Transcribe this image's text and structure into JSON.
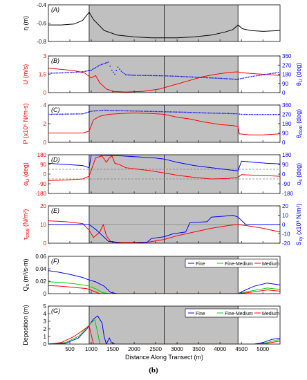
{
  "caption": "(b)",
  "colors": {
    "red": "#ff0000",
    "blue": "#0000ff",
    "green": "#00cc00",
    "black": "#000000",
    "shade": "#c0c0c0",
    "dash": "#808080"
  },
  "chart_data": [
    {
      "panel": "(A)",
      "type": "line",
      "ylabel": "η (m)",
      "ylim": [
        -0.8,
        -0.4
      ],
      "yticks": [
        -0.8,
        -0.6,
        -0.4
      ],
      "xlim": [
        0,
        5400
      ],
      "shaded": [
        950,
        4420
      ],
      "vlines": [
        2700
      ],
      "series": [
        {
          "color": "#000000",
          "x": [
            0,
            300,
            600,
            800,
            950,
            1050,
            1300,
            1600,
            2000,
            2400,
            2700,
            3000,
            3400,
            3800,
            4100,
            4300,
            4420,
            4520,
            4700,
            5000,
            5400
          ],
          "y": [
            -0.62,
            -0.62,
            -0.61,
            -0.57,
            -0.48,
            -0.56,
            -0.68,
            -0.73,
            -0.75,
            -0.76,
            -0.76,
            -0.76,
            -0.75,
            -0.73,
            -0.7,
            -0.67,
            -0.62,
            -0.66,
            -0.68,
            -0.69,
            -0.68
          ]
        }
      ]
    },
    {
      "panel": "(B)",
      "type": "line",
      "ylabel": "U (m/s)",
      "ylim": [
        0,
        3
      ],
      "yticks": [
        0,
        1.5,
        3
      ],
      "y2label": "θU (deg)",
      "y2lim": [
        0,
        360
      ],
      "y2ticks": [
        0,
        90,
        180,
        270,
        360
      ],
      "xlim": [
        0,
        5400
      ],
      "shaded": [
        950,
        4420
      ],
      "vlines": [
        2700
      ],
      "series": [
        {
          "color": "#ff0000",
          "axis": "left",
          "x": [
            0,
            300,
            600,
            850,
            1000,
            1100,
            1200,
            1350,
            1500,
            1800,
            2200,
            2600,
            2700,
            3000,
            3300,
            3600,
            3900,
            4200,
            4400,
            4600,
            5000,
            5400
          ],
          "y": [
            2.0,
            1.9,
            1.8,
            1.6,
            1.2,
            1.4,
            0.8,
            0.3,
            0.1,
            0.05,
            0.1,
            0.3,
            0.4,
            0.7,
            1.0,
            1.3,
            1.5,
            1.65,
            1.7,
            1.6,
            1.5,
            1.4
          ]
        },
        {
          "color": "#0000ff",
          "axis": "right",
          "dotted": true,
          "x": [
            0,
            400,
            800,
            1000,
            1200,
            1400,
            1480,
            1550,
            1620,
            1700,
            1800,
            2000,
            2300,
            2700,
            3000,
            3500,
            4000,
            4400,
            4700,
            5000,
            5400
          ],
          "y": [
            190,
            195,
            205,
            220,
            270,
            300,
            220,
            180,
            250,
            210,
            175,
            170,
            168,
            165,
            160,
            150,
            140,
            130,
            155,
            175,
            200
          ]
        }
      ]
    },
    {
      "panel": "(C)",
      "type": "line",
      "ylabel": "P (x10⁵ N/m-s)",
      "ylim": [
        0,
        4
      ],
      "yticks": [
        0,
        2,
        4
      ],
      "y2label": "θdom (deg)",
      "y2lim": [
        0,
        360
      ],
      "y2ticks": [
        0,
        90,
        180,
        270,
        360
      ],
      "xlim": [
        0,
        5400
      ],
      "shaded": [
        950,
        4420
      ],
      "vlines": [
        2700
      ],
      "series": [
        {
          "color": "#ff0000",
          "axis": "left",
          "x": [
            0,
            400,
            800,
            950,
            1050,
            1200,
            1400,
            1700,
            2000,
            2400,
            2700,
            3000,
            3300,
            3600,
            4000,
            4300,
            4420,
            4450,
            4700,
            5000,
            5400
          ],
          "y": [
            1.0,
            1.0,
            1.0,
            1.2,
            2.4,
            2.8,
            3.0,
            3.1,
            3.15,
            3.1,
            3.0,
            2.7,
            2.5,
            2.2,
            1.9,
            1.8,
            1.7,
            0.9,
            0.8,
            0.8,
            0.9
          ]
        },
        {
          "color": "#0000ff",
          "axis": "right",
          "dotted": true,
          "x": [
            0,
            400,
            800,
            1000,
            1300,
            1700,
            2200,
            2700,
            3200,
            3700,
            4200,
            4420,
            4500,
            4800,
            5100,
            5400
          ],
          "y": [
            270,
            272,
            275,
            300,
            310,
            305,
            300,
            295,
            290,
            283,
            278,
            275,
            270,
            268,
            268,
            268
          ]
        }
      ]
    },
    {
      "panel": "(D)",
      "type": "line",
      "ylabel": "αU (deg)",
      "ylim": [
        -180,
        180
      ],
      "yticks": [
        -180,
        -90,
        0,
        90,
        180
      ],
      "y2label": "αs (deg)",
      "y2lim": [
        -180,
        180
      ],
      "y2ticks": [
        -180,
        -90,
        0,
        90,
        180
      ],
      "xlim": [
        0,
        5400
      ],
      "shaded": [
        950,
        4420
      ],
      "vlines": [
        2700
      ],
      "hlines_dashed": [
        45,
        -45
      ],
      "series": [
        {
          "color": "#ff0000",
          "axis": "left",
          "x": [
            0,
            400,
            800,
            950,
            1100,
            1250,
            1350,
            1420,
            1480,
            1550,
            1650,
            1800,
            2000,
            2400,
            2700,
            3000,
            3400,
            3800,
            4200,
            4420,
            4500,
            4800,
            5100,
            5400
          ],
          "y": [
            -60,
            -55,
            -45,
            -20,
            150,
            170,
            110,
            150,
            170,
            100,
            90,
            60,
            50,
            30,
            10,
            -10,
            -30,
            -45,
            -40,
            -30,
            -5,
            -10,
            -15,
            -20
          ]
        },
        {
          "color": "#0000ff",
          "axis": "right",
          "x": [
            0,
            400,
            800,
            950,
            1000,
            1300,
            1700,
            2100,
            2500,
            2700,
            3000,
            3400,
            3800,
            4200,
            4420,
            4500,
            4800,
            5100,
            5400
          ],
          "y": [
            100,
            90,
            80,
            60,
            180,
            175,
            170,
            160,
            150,
            140,
            110,
            80,
            60,
            40,
            30,
            120,
            110,
            100,
            95
          ]
        }
      ]
    },
    {
      "panel": "(E)",
      "type": "line",
      "ylabel": "τtotal (N/m²)",
      "ylim": [
        0,
        20
      ],
      "yticks": [
        0,
        10,
        20
      ],
      "y2label": "Sxy (x10³ N/m²)",
      "y2lim": [
        -20,
        20
      ],
      "y2ticks": [
        -20,
        -10,
        0,
        10,
        20
      ],
      "xlim": [
        0,
        5400
      ],
      "shaded": [
        950,
        4420
      ],
      "vlines": [
        2700
      ],
      "hlines_solid": [
        10
      ],
      "series": [
        {
          "color": "#ff0000",
          "axis": "left",
          "x": [
            0,
            400,
            800,
            950,
            1050,
            1200,
            1280,
            1350,
            1450,
            1600,
            1900,
            2300,
            2700,
            3000,
            3400,
            3800,
            4200,
            4400,
            4600,
            5000,
            5400
          ],
          "y": [
            12,
            11.5,
            10.5,
            7,
            3,
            6,
            10,
            4,
            1,
            0.5,
            0.5,
            0.5,
            2,
            4,
            6,
            8,
            9.5,
            10,
            9.5,
            8,
            6
          ]
        },
        {
          "color": "#0000ff",
          "axis": "right",
          "x": [
            0,
            400,
            800,
            950,
            1100,
            1400,
            1700,
            2000,
            2300,
            2400,
            2700,
            2900,
            3200,
            3300,
            3700,
            3800,
            4100,
            4300,
            4420,
            4600,
            5000,
            5400
          ],
          "y": [
            0,
            0,
            0,
            0,
            -5,
            -18,
            -20,
            -20,
            -19,
            -15,
            -13,
            -10,
            -8,
            2,
            3,
            8,
            9,
            10,
            8,
            0,
            0,
            0
          ]
        }
      ]
    },
    {
      "panel": "(F)",
      "type": "line",
      "ylabel": "Qs (m³/s-m)",
      "ylim": [
        0,
        0.06
      ],
      "yticks": [
        0,
        0.02,
        0.04,
        0.06
      ],
      "xlim": [
        0,
        5400
      ],
      "shaded": [
        950,
        4420
      ],
      "vlines": [
        2700
      ],
      "legend": [
        "Fine",
        "Fine-Medium",
        "Medium"
      ],
      "legend_position": "top-right",
      "series": [
        {
          "name": "Fine",
          "color": "#0000ff",
          "x": [
            0,
            200,
            500,
            800,
            950,
            1100,
            1300,
            1450,
            1600,
            2000,
            3000,
            4420,
            4600,
            4800,
            5100,
            5400
          ],
          "y": [
            0.037,
            0.035,
            0.031,
            0.026,
            0.022,
            0.019,
            0.012,
            0.002,
            0,
            0,
            0,
            0,
            0.006,
            0.012,
            0.017,
            0.014
          ]
        },
        {
          "name": "Fine-Medium",
          "color": "#00cc00",
          "x": [
            0,
            300,
            600,
            900,
            1100,
            1250,
            1400,
            3000,
            4420,
            4700,
            5100,
            5400
          ],
          "y": [
            0.019,
            0.018,
            0.016,
            0.013,
            0.008,
            0.002,
            0,
            0,
            0,
            0.004,
            0.009,
            0.007
          ]
        },
        {
          "name": "Medium",
          "color": "#ff0000",
          "x": [
            0,
            300,
            600,
            900,
            1050,
            1200,
            3000,
            4420,
            4700,
            5100,
            5400
          ],
          "y": [
            0.013,
            0.012,
            0.01,
            0.008,
            0.004,
            0,
            0,
            0,
            0.002,
            0.006,
            0.004
          ]
        }
      ]
    },
    {
      "panel": "(G)",
      "type": "line",
      "ylabel": "Deposition (m)",
      "ylim": [
        0,
        5
      ],
      "yticks": [
        0,
        1,
        2,
        3,
        4,
        5
      ],
      "xlim": [
        0,
        5400
      ],
      "xticks": [
        500,
        1000,
        1500,
        2000,
        2500,
        3000,
        3500,
        4000,
        4500,
        5000
      ],
      "xlabel": "Distance Along Transect (m)",
      "shaded": [
        950,
        4420
      ],
      "vlines": [
        2700
      ],
      "legend": [
        "Fine",
        "Fine-Medium",
        "Medium"
      ],
      "legend_position": "top-right",
      "series": [
        {
          "name": "Fine",
          "color": "#0000ff",
          "x": [
            0,
            400,
            700,
            900,
            1050,
            1150,
            1250,
            1300,
            1350,
            1420,
            1470,
            1550,
            2000,
            4800,
            5000,
            5200,
            5400
          ],
          "y": [
            0,
            0.1,
            0.8,
            2.0,
            3.3,
            3.7,
            2.8,
            1.0,
            0,
            0.8,
            0.2,
            0,
            0,
            0,
            0.2,
            0.6,
            0.8
          ]
        },
        {
          "name": "Fine-Medium",
          "color": "#00cc00",
          "x": [
            0,
            400,
            700,
            900,
            1000,
            1080,
            1150,
            1200,
            2000,
            4900,
            5100,
            5300,
            5400
          ],
          "y": [
            0,
            0.2,
            1.0,
            2.2,
            2.8,
            3.2,
            1.5,
            0,
            0,
            0,
            0.2,
            0.5,
            0.6
          ]
        },
        {
          "name": "Medium",
          "color": "#ff0000",
          "x": [
            0,
            300,
            600,
            850,
            950,
            1000,
            1050,
            2000,
            5000,
            5200,
            5400
          ],
          "y": [
            0,
            0.2,
            1.0,
            2.0,
            2.4,
            1.2,
            0,
            0,
            0,
            0.2,
            0.4
          ]
        }
      ]
    }
  ]
}
